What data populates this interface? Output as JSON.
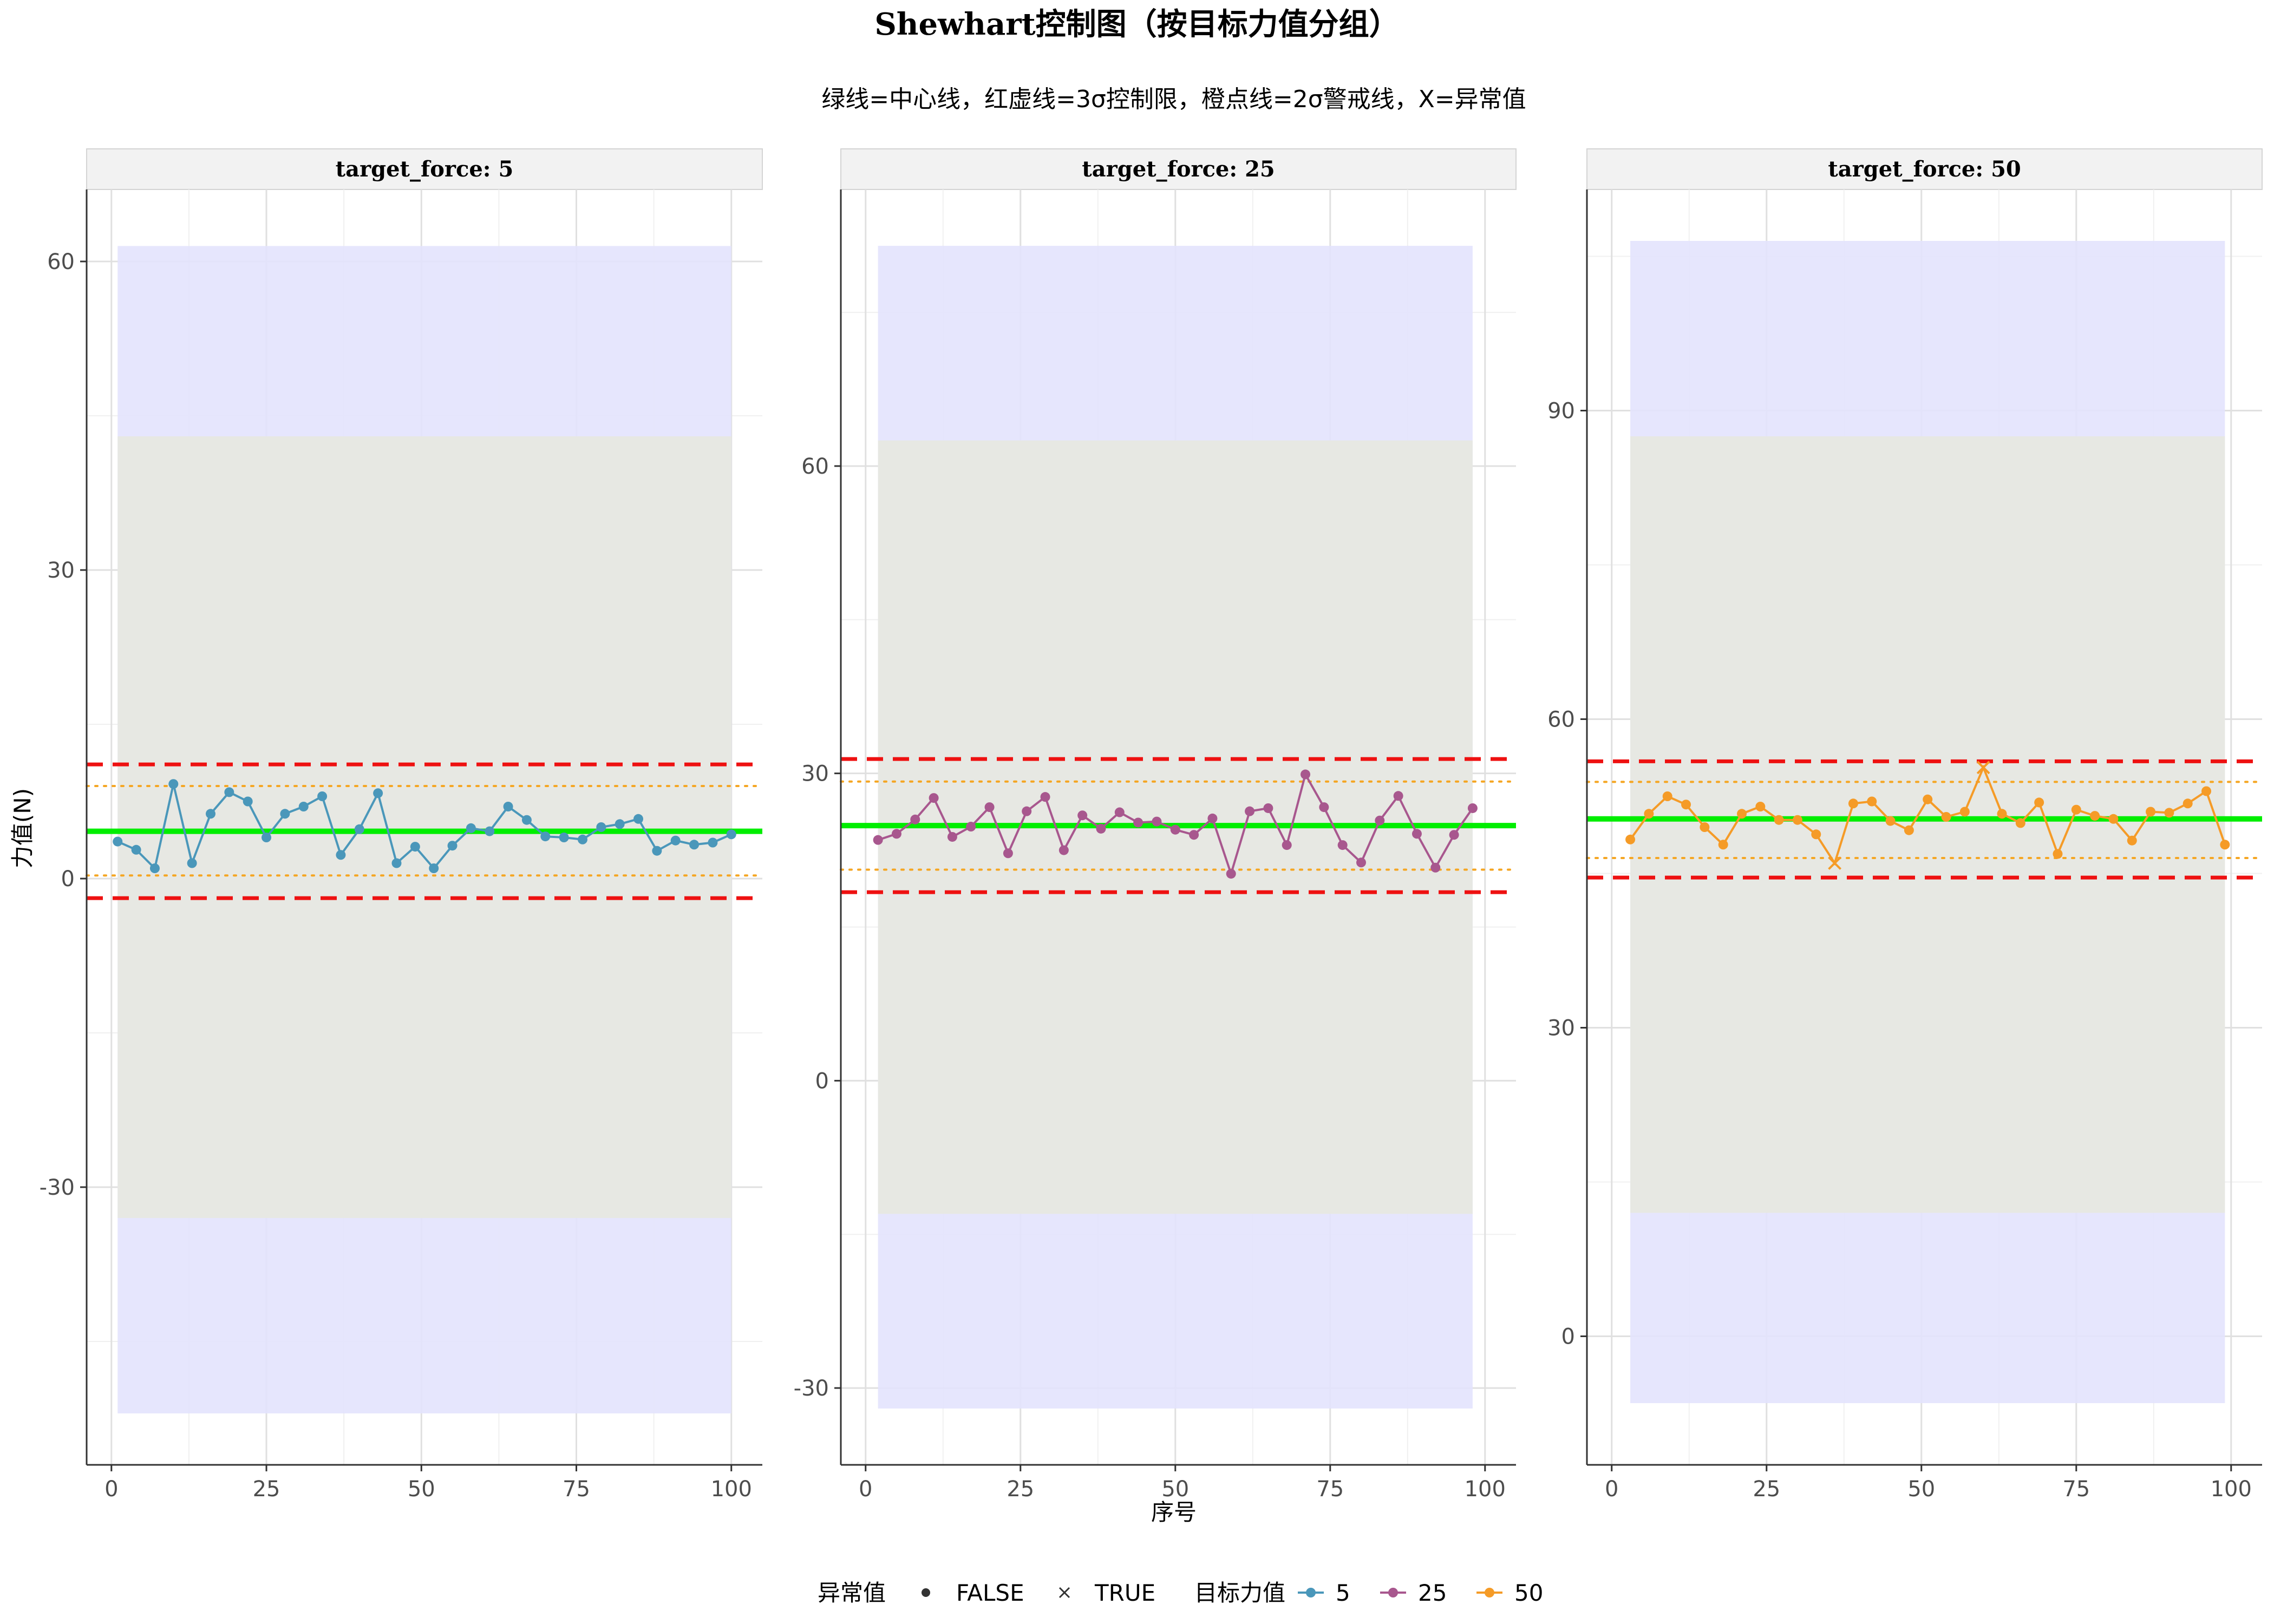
{
  "chart_data": {
    "type": "line",
    "title": "Shewhart控制图（按目标力值分组）",
    "subtitle": "绿线=中心线，红虚线=3σ控制限，橙点线=2σ警戒线，X=异常值",
    "xlabel": "序号",
    "ylabel": "力值(N)",
    "grid": true,
    "legend_position": "bottom",
    "legend": {
      "outlier_title": "异常值",
      "outlier_items": [
        {
          "label": "FALSE",
          "symbol": "dot"
        },
        {
          "label": "TRUE",
          "symbol": "cross"
        }
      ],
      "target_title": "目标力值",
      "target_items": [
        {
          "label": "5",
          "color": "#4a97ba"
        },
        {
          "label": "25",
          "color": "#a8578e"
        },
        {
          "label": "50",
          "color": "#f59b27"
        }
      ]
    },
    "colors": {
      "center_line": "#00ee00",
      "control_limit": "#ee1111",
      "warning_line": "#f5a623",
      "band_outer": "#e3e3fd",
      "band_inner": "#e7e8e2"
    },
    "panels": [
      {
        "strip": "target_force: 5",
        "color": "#4a97ba",
        "xlim": [
          -4,
          105
        ],
        "ylim": [
          -57,
          67
        ],
        "x_ticks": [
          0,
          25,
          50,
          75,
          100
        ],
        "y_ticks": [
          -30,
          0,
          30,
          60
        ],
        "x_tick_labels": [
          "0",
          "25",
          "50",
          "75",
          "100"
        ],
        "y_tick_labels": [
          "-30",
          "0",
          "30",
          "60"
        ],
        "bands": {
          "outer": [
            -52,
            61.5
          ],
          "inner": [
            -33,
            43
          ]
        },
        "center": 4.6,
        "ucl": 11.1,
        "lcl": -1.9,
        "uwl": 9.0,
        "lwl": 0.3,
        "x": [
          1,
          4,
          7,
          10,
          13,
          16,
          19,
          22,
          25,
          28,
          31,
          34,
          37,
          40,
          43,
          46,
          49,
          52,
          55,
          58,
          61,
          64,
          67,
          70,
          73,
          76,
          79,
          82,
          85,
          88,
          91,
          94,
          97,
          100
        ],
        "y": [
          3.6,
          2.8,
          1.0,
          9.2,
          1.5,
          6.3,
          8.4,
          7.5,
          4.0,
          6.3,
          7.0,
          8.0,
          2.3,
          4.8,
          8.3,
          1.5,
          3.1,
          1.0,
          3.2,
          4.9,
          4.6,
          7.0,
          5.7,
          4.1,
          4.0,
          3.8,
          5.0,
          5.3,
          5.8,
          2.7,
          3.7,
          3.3,
          3.5,
          4.3
        ],
        "outliers": [
          false,
          false,
          false,
          false,
          false,
          false,
          false,
          false,
          false,
          false,
          false,
          false,
          false,
          false,
          false,
          false,
          false,
          false,
          false,
          false,
          false,
          false,
          false,
          false,
          false,
          false,
          false,
          false,
          false,
          false,
          false,
          false,
          false,
          false
        ]
      },
      {
        "strip": "target_force: 25",
        "color": "#a8578e",
        "xlim": [
          -4,
          105
        ],
        "ylim": [
          -37.5,
          87
        ],
        "x_ticks": [
          0,
          25,
          50,
          75,
          100
        ],
        "y_ticks": [
          -30,
          0,
          30,
          60
        ],
        "x_tick_labels": [
          "0",
          "25",
          "50",
          "75",
          "100"
        ],
        "y_tick_labels": [
          "-30",
          "0",
          "30",
          "60"
        ],
        "bands": {
          "outer": [
            -32,
            81.5
          ],
          "inner": [
            -13,
            62.5
          ]
        },
        "center": 24.9,
        "ucl": 31.4,
        "lcl": 18.4,
        "uwl": 29.2,
        "lwl": 20.6,
        "x": [
          2,
          5,
          8,
          11,
          14,
          17,
          20,
          23,
          26,
          29,
          32,
          35,
          38,
          41,
          44,
          47,
          50,
          53,
          56,
          59,
          62,
          65,
          68,
          71,
          74,
          77,
          80,
          83,
          86,
          89,
          92,
          95,
          98
        ],
        "y": [
          23.5,
          24.1,
          25.5,
          27.6,
          23.8,
          24.8,
          26.7,
          22.2,
          26.3,
          27.7,
          22.5,
          25.9,
          24.6,
          26.2,
          25.2,
          25.3,
          24.5,
          24.0,
          25.6,
          20.2,
          26.3,
          26.6,
          23.0,
          29.9,
          26.7,
          23.0,
          21.3,
          25.4,
          27.8,
          24.1,
          20.8,
          24.0,
          26.6
        ],
        "outliers": [
          false,
          false,
          false,
          false,
          false,
          false,
          false,
          false,
          false,
          false,
          false,
          false,
          false,
          false,
          false,
          false,
          false,
          false,
          false,
          false,
          false,
          false,
          false,
          false,
          false,
          false,
          false,
          false,
          false,
          false,
          false,
          false,
          false
        ]
      },
      {
        "strip": "target_force: 50",
        "color": "#f59b27",
        "xlim": [
          -4,
          105
        ],
        "ylim": [
          -12.5,
          111.5
        ],
        "x_ticks": [
          0,
          25,
          50,
          75,
          100
        ],
        "y_ticks": [
          0,
          30,
          60,
          90
        ],
        "x_tick_labels": [
          "0",
          "25",
          "50",
          "75",
          "100"
        ],
        "y_tick_labels": [
          "0",
          "30",
          "60",
          "90"
        ],
        "bands": {
          "outer": [
            -6.5,
            106.5
          ],
          "inner": [
            12,
            87.5
          ]
        },
        "center": 50.3,
        "ucl": 55.9,
        "lcl": 44.6,
        "uwl": 53.9,
        "lwl": 46.5,
        "x": [
          3,
          6,
          9,
          12,
          15,
          18,
          21,
          24,
          27,
          30,
          33,
          36,
          39,
          42,
          45,
          48,
          51,
          54,
          57,
          60,
          63,
          66,
          69,
          72,
          75,
          78,
          81,
          84,
          87,
          90,
          93,
          96,
          99
        ],
        "y": [
          48.3,
          50.8,
          52.5,
          51.7,
          49.5,
          47.8,
          50.8,
          51.5,
          50.2,
          50.2,
          48.8,
          46.0,
          51.8,
          52.0,
          50.1,
          49.2,
          52.2,
          50.5,
          51.0,
          55.3,
          50.8,
          49.9,
          51.9,
          46.9,
          51.2,
          50.6,
          50.3,
          48.2,
          51.0,
          50.9,
          51.8,
          53.0,
          47.8
        ],
        "outliers": [
          false,
          false,
          false,
          false,
          false,
          false,
          false,
          false,
          false,
          false,
          false,
          true,
          false,
          false,
          false,
          false,
          false,
          false,
          false,
          true,
          false,
          false,
          false,
          false,
          false,
          false,
          false,
          false,
          false,
          false,
          false,
          false,
          false
        ]
      }
    ]
  }
}
